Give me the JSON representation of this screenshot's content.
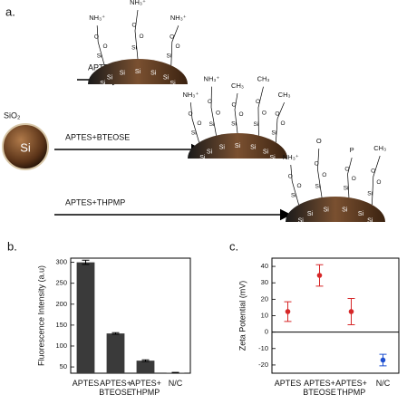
{
  "schematic": {
    "panel": "a.",
    "shell": "SiO₂",
    "core": "Si",
    "routes": [
      {
        "reagent": "APTES",
        "surface": [
          "Si",
          "Si",
          "Si",
          "Si",
          "Si",
          "Si",
          "Si"
        ],
        "linker": [
          "Si",
          "O",
          "O"
        ],
        "groups": [
          "NH₃⁺",
          "NH₃⁺",
          "NH₃⁺"
        ]
      },
      {
        "reagent": "APTES+BTEOSE",
        "surface": [
          "Si",
          "Si",
          "Si",
          "Si",
          "Si",
          "Si",
          "Si"
        ],
        "linker": [
          "Si",
          "O",
          "O"
        ],
        "groups": [
          "NH₃⁺",
          "NH₃⁺",
          "CH₃",
          "CH₃",
          "CH₃"
        ]
      },
      {
        "reagent": "APTES+THPMP",
        "surface": [
          "Si",
          "Si",
          "Si",
          "Si",
          "Si",
          "Si"
        ],
        "linker": [
          "Si",
          "O",
          "O"
        ],
        "groups": [
          "NH₃⁺",
          "O",
          "P",
          "CH₃"
        ]
      }
    ]
  },
  "chart_data": [
    {
      "type": "bar",
      "panel": "b.",
      "y_label": "Fluorescence Intensity (a.u)",
      "categories": [
        "APTES",
        "APTES+ BTEOSE",
        "APTES+ THPMP",
        "N/C"
      ],
      "values": [
        300,
        130,
        65,
        36
      ],
      "errors": [
        5,
        2,
        2,
        1
      ],
      "color": "#3a3a3a",
      "ylim": [
        35,
        310
      ],
      "yticks": [
        50,
        100,
        150,
        200,
        250,
        300
      ]
    },
    {
      "type": "scatter",
      "panel": "c.",
      "y_label": "Zeta Potential (mV)",
      "categories": [
        "APTES",
        "APTES+ BTEOSE",
        "APTES+ THPMP",
        "N/C"
      ],
      "values": [
        12.5,
        34.5,
        12.5,
        -17
      ],
      "errors": [
        6,
        6.5,
        8,
        3.5
      ],
      "colors": [
        "#d62728",
        "#d62728",
        "#d62728",
        "#1f50d0"
      ],
      "ylim": [
        -25,
        45
      ],
      "yticks": [
        -20,
        -10,
        0,
        10,
        20,
        30,
        40
      ],
      "zero_line": true
    }
  ]
}
